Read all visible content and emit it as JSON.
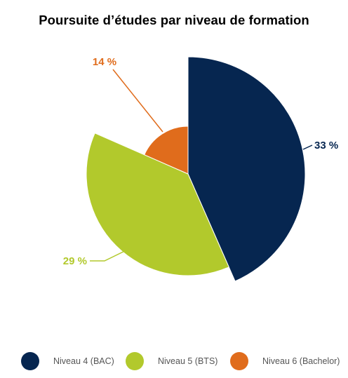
{
  "chart_data": {
    "type": "pie",
    "title": "Poursuite d’études par niveau de formation",
    "categories": [
      "Niveau 4 (BAC)",
      "Niveau 5 (BTS)",
      "Niveau 6 (Bachelor)"
    ],
    "values": [
      33,
      29,
      14
    ],
    "value_labels": [
      "33 %",
      "29 %",
      "14 %"
    ],
    "colors": [
      "#062650",
      "#b2c92c",
      "#e06c1c"
    ],
    "variable_radius": true,
    "legend_position": "bottom"
  }
}
